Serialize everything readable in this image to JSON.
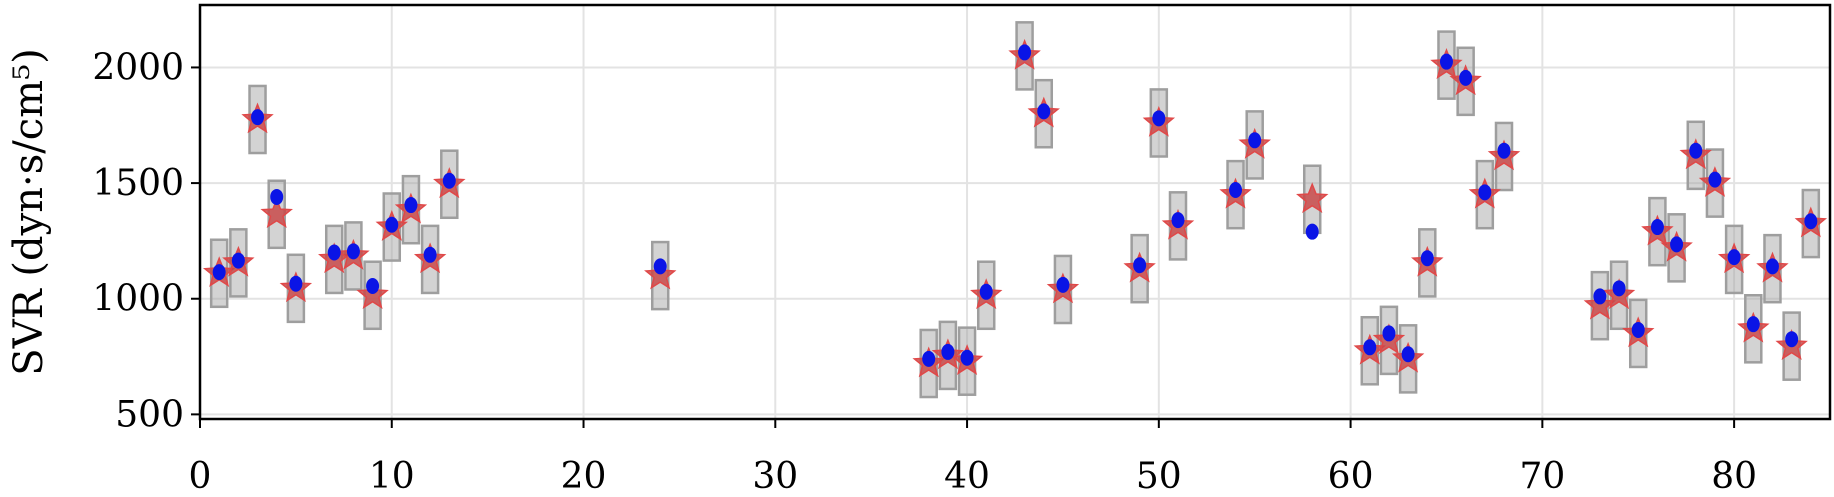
{
  "chart_data": {
    "type": "scatter",
    "ylabel": "SVR (dyn·s/cm⁵)",
    "xlim": [
      0,
      85
    ],
    "ylim": [
      480,
      2270
    ],
    "x_ticks": [
      0,
      10,
      20,
      30,
      40,
      50,
      60,
      70,
      80
    ],
    "y_ticks": [
      500,
      1000,
      1500,
      2000
    ],
    "grid": true,
    "colors": {
      "box": "#9e9e9e",
      "star": "#e04848",
      "dot": "#0a14e6"
    },
    "series": [
      {
        "marker": "star",
        "points": [
          [
            1,
            1110
          ],
          [
            2,
            1155
          ],
          [
            3,
            1775
          ],
          [
            4,
            1365
          ],
          [
            5,
            1045
          ],
          [
            7,
            1170
          ],
          [
            8,
            1185
          ],
          [
            9,
            1015
          ],
          [
            10,
            1310
          ],
          [
            11,
            1385
          ],
          [
            12,
            1170
          ],
          [
            13,
            1495
          ],
          [
            24,
            1100
          ],
          [
            38,
            720
          ],
          [
            39,
            755
          ],
          [
            40,
            730
          ],
          [
            41,
            1015
          ],
          [
            43,
            2050
          ],
          [
            44,
            1800
          ],
          [
            45,
            1040
          ],
          [
            49,
            1130
          ],
          [
            50,
            1760
          ],
          [
            51,
            1315
          ],
          [
            54,
            1450
          ],
          [
            55,
            1665
          ],
          [
            58,
            1430
          ],
          [
            61,
            775
          ],
          [
            62,
            820
          ],
          [
            63,
            740
          ],
          [
            64,
            1155
          ],
          [
            65,
            2010
          ],
          [
            66,
            1940
          ],
          [
            67,
            1450
          ],
          [
            68,
            1615
          ],
          [
            73,
            970
          ],
          [
            74,
            1015
          ],
          [
            75,
            850
          ],
          [
            76,
            1290
          ],
          [
            77,
            1220
          ],
          [
            78,
            1620
          ],
          [
            79,
            1500
          ],
          [
            80,
            1170
          ],
          [
            81,
            870
          ],
          [
            82,
            1130
          ],
          [
            83,
            795
          ],
          [
            84,
            1325
          ]
        ]
      },
      {
        "marker": "dot",
        "points": [
          [
            1,
            1115
          ],
          [
            2,
            1165
          ],
          [
            3,
            1785
          ],
          [
            4,
            1440
          ],
          [
            5,
            1065
          ],
          [
            7,
            1200
          ],
          [
            8,
            1205
          ],
          [
            9,
            1055
          ],
          [
            10,
            1320
          ],
          [
            11,
            1405
          ],
          [
            12,
            1190
          ],
          [
            13,
            1510
          ],
          [
            24,
            1140
          ],
          [
            38,
            740
          ],
          [
            39,
            770
          ],
          [
            40,
            745
          ],
          [
            41,
            1030
          ],
          [
            43,
            2065
          ],
          [
            44,
            1810
          ],
          [
            45,
            1060
          ],
          [
            49,
            1145
          ],
          [
            50,
            1780
          ],
          [
            51,
            1340
          ],
          [
            54,
            1470
          ],
          [
            55,
            1685
          ],
          [
            58,
            1290
          ],
          [
            61,
            790
          ],
          [
            62,
            850
          ],
          [
            63,
            760
          ],
          [
            64,
            1175
          ],
          [
            65,
            2025
          ],
          [
            66,
            1955
          ],
          [
            67,
            1460
          ],
          [
            68,
            1640
          ],
          [
            73,
            1010
          ],
          [
            74,
            1045
          ],
          [
            75,
            865
          ],
          [
            76,
            1310
          ],
          [
            77,
            1235
          ],
          [
            78,
            1640
          ],
          [
            79,
            1515
          ],
          [
            80,
            1180
          ],
          [
            81,
            890
          ],
          [
            82,
            1140
          ],
          [
            83,
            825
          ],
          [
            84,
            1335
          ]
        ]
      },
      {
        "marker": "box",
        "half_height": 145,
        "centers": [
          [
            1,
            1110
          ],
          [
            2,
            1155
          ],
          [
            3,
            1775
          ],
          [
            4,
            1365
          ],
          [
            5,
            1045
          ],
          [
            7,
            1170
          ],
          [
            8,
            1185
          ],
          [
            9,
            1015
          ],
          [
            10,
            1310
          ],
          [
            11,
            1385
          ],
          [
            12,
            1170
          ],
          [
            13,
            1495
          ],
          [
            24,
            1100
          ],
          [
            38,
            720
          ],
          [
            39,
            755
          ],
          [
            40,
            730
          ],
          [
            41,
            1015
          ],
          [
            43,
            2050
          ],
          [
            44,
            1800
          ],
          [
            45,
            1040
          ],
          [
            49,
            1130
          ],
          [
            50,
            1760
          ],
          [
            51,
            1315
          ],
          [
            54,
            1450
          ],
          [
            55,
            1665
          ],
          [
            58,
            1430
          ],
          [
            61,
            775
          ],
          [
            62,
            820
          ],
          [
            63,
            740
          ],
          [
            64,
            1155
          ],
          [
            65,
            2010
          ],
          [
            66,
            1940
          ],
          [
            67,
            1450
          ],
          [
            68,
            1615
          ],
          [
            73,
            970
          ],
          [
            74,
            1015
          ],
          [
            75,
            850
          ],
          [
            76,
            1290
          ],
          [
            77,
            1220
          ],
          [
            78,
            1620
          ],
          [
            79,
            1500
          ],
          [
            80,
            1170
          ],
          [
            81,
            870
          ],
          [
            82,
            1130
          ],
          [
            83,
            795
          ],
          [
            84,
            1325
          ]
        ]
      }
    ]
  }
}
